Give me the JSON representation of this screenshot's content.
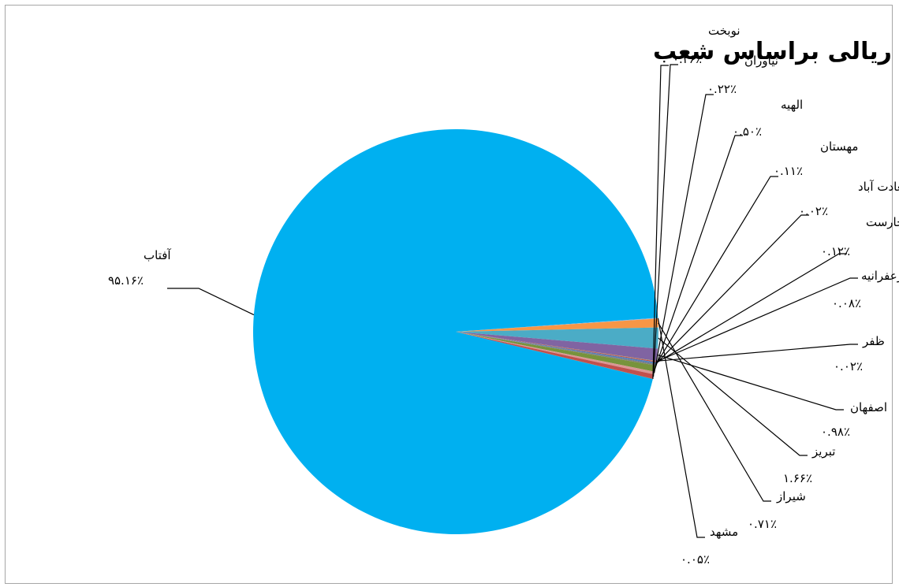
{
  "chart_data": {
    "type": "pie",
    "title": "تمرکز کل تسهیلات ریالی براساس شعب",
    "slices": [
      {
        "name": "آفتاب",
        "value": 95.16,
        "label": "۹۵.۱۶٪",
        "color": "#00b0f0"
      },
      {
        "name": "مشهد",
        "value": 0.05,
        "label": "۰.۰۵٪",
        "color": "#8db3e2"
      },
      {
        "name": "شیراز",
        "value": 0.71,
        "label": "۰.۷۱٪",
        "color": "#f79646"
      },
      {
        "name": "تبریز",
        "value": 1.66,
        "label": "۱.۶۶٪",
        "color": "#4bacc6"
      },
      {
        "name": "اصفهان",
        "value": 0.98,
        "label": "۰.۹۸٪",
        "color": "#8064a2"
      },
      {
        "name": "ظفر",
        "value": 0.02,
        "label": "۰.۰۲٪",
        "color": "#9bbb59"
      },
      {
        "name": "زعفرانیه",
        "value": 0.08,
        "label": "۰.۰۸٪",
        "color": "#c0504d"
      },
      {
        "name": "",
        "value": 0.12,
        "label": "۰.۱۲٪",
        "color": "#4f81bd"
      },
      {
        "name": "بخارست",
        "value": 0.02,
        "label": "۰.۰۲٪",
        "color": "#1f497d"
      },
      {
        "name": "سعادت آباد",
        "value": 0.11,
        "label": "۰.۱۱٪",
        "color": "#7f7f7f"
      },
      {
        "name": "مهستان",
        "value": 0.5,
        "label": "۰.۵۰٪",
        "color": "#77933c"
      },
      {
        "name": "الهیه",
        "value": 0.22,
        "label": "۰.۲۲٪",
        "color": "#d99694"
      },
      {
        "name": "نیاوران",
        "value": 0.36,
        "label": "۰.۳۶٪",
        "color": "#c0504d"
      },
      {
        "name": "نوبخت",
        "value": 0.01,
        "label": "",
        "color": "#e46c0a"
      }
    ],
    "legend": "none"
  }
}
